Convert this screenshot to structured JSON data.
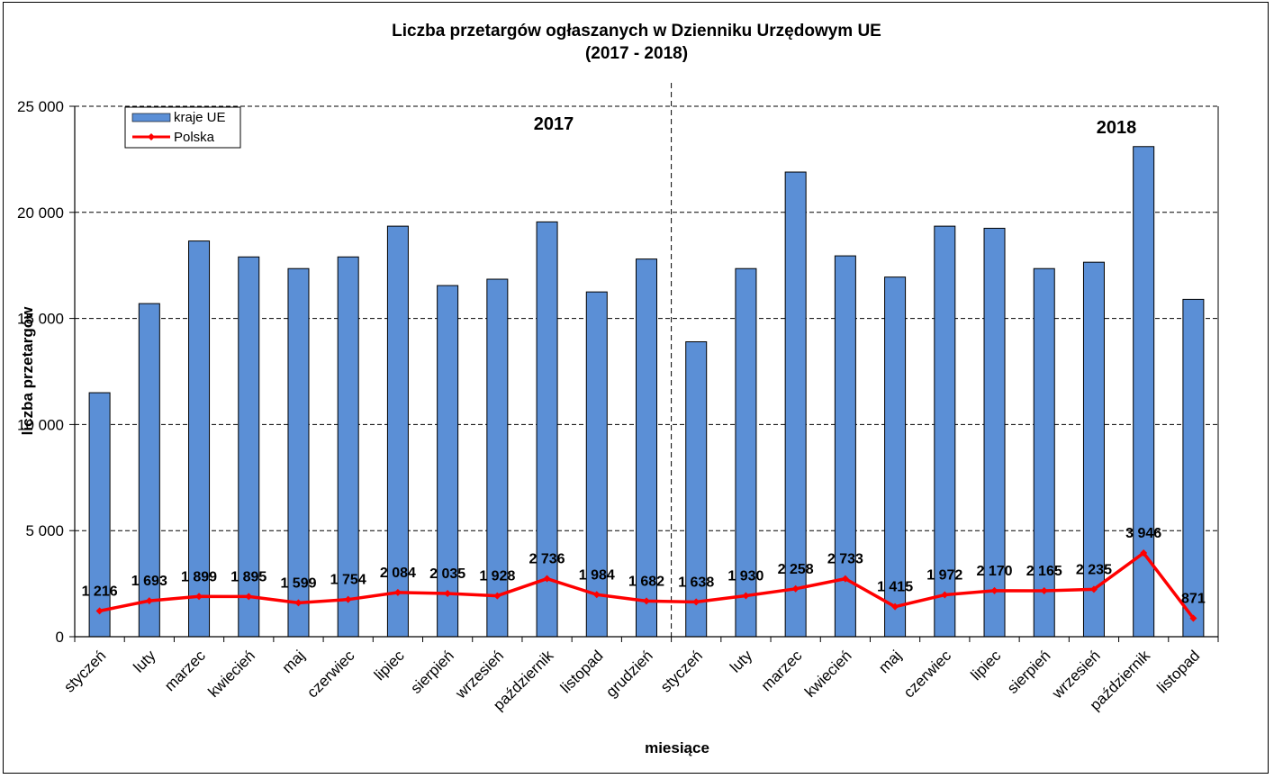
{
  "chart_data": {
    "type": "bar",
    "title": "Liczba przetargów ogłaszanych w Dzienniku Urzędowym UE",
    "subtitle": "(2017 - 2018)",
    "xlabel": "miesiące",
    "ylabel": "liczba przetargów",
    "ylim": [
      0,
      25000
    ],
    "yticks": [
      0,
      5000,
      10000,
      15000,
      20000,
      25000
    ],
    "ytick_labels": [
      "0",
      "5 000",
      "10 000",
      "15 000",
      "20 000",
      "25 000"
    ],
    "grid": true,
    "categories": [
      "styczeń",
      "luty",
      "marzec",
      "kwiecień",
      "maj",
      "czerwiec",
      "lipiec",
      "sierpień",
      "wrzesień",
      "październik",
      "listopad",
      "grudzień",
      "styczeń",
      "luty",
      "marzec",
      "kwiecień",
      "maj",
      "czerwiec",
      "lipiec",
      "sierpień",
      "wrzesień",
      "październik",
      "listopad"
    ],
    "series": [
      {
        "name": "kraje UE",
        "type": "bar",
        "color": "#5b8fd6",
        "values": [
          11500,
          15700,
          18650,
          17900,
          17350,
          17900,
          19350,
          16550,
          16850,
          19550,
          16250,
          17800,
          13900,
          17350,
          21900,
          17950,
          16950,
          19350,
          19250,
          17350,
          17650,
          23100,
          15900
        ]
      },
      {
        "name": "Polska",
        "type": "line",
        "color": "#ff0000",
        "values": [
          1216,
          1693,
          1899,
          1895,
          1599,
          1754,
          2084,
          2035,
          1928,
          2736,
          1984,
          1682,
          1638,
          1930,
          2258,
          2733,
          1415,
          1972,
          2170,
          2165,
          2235,
          3946,
          871
        ],
        "labels": [
          "1 216",
          "1 693",
          "1 899",
          "1 895",
          "1 599",
          "1 754",
          "2 084",
          "2 035",
          "1 928",
          "2 736",
          "1 984",
          "1 682",
          "1 638",
          "1 930",
          "2 258",
          "2 733",
          "1 415",
          "1 972",
          "2 170",
          "2 165",
          "2 235",
          "3 946",
          "871"
        ]
      }
    ],
    "annotations": {
      "year_left": "2017",
      "year_right": "2018",
      "divider_after_index": 11
    },
    "legend": {
      "position": "top-left",
      "entries": [
        "kraje UE",
        "Polska"
      ]
    }
  }
}
